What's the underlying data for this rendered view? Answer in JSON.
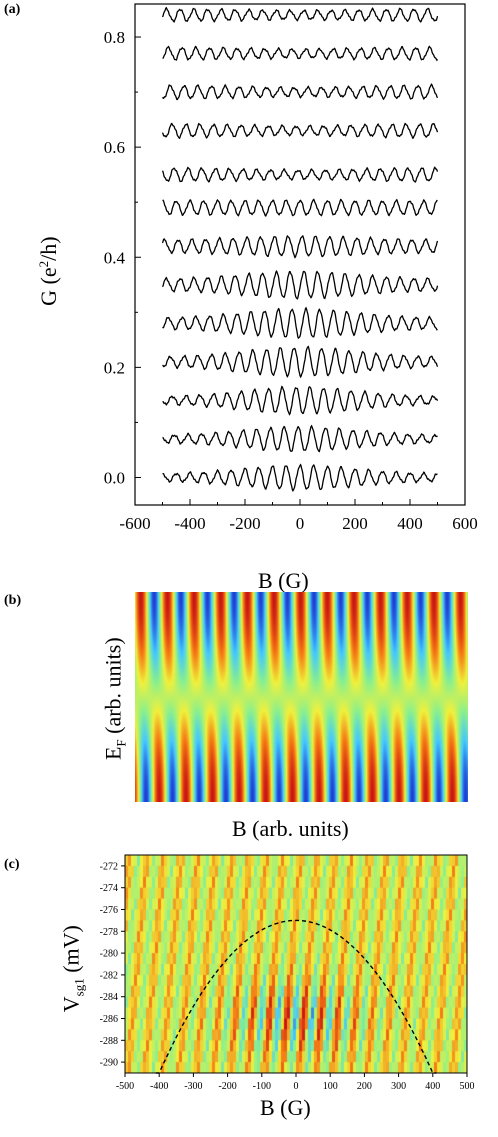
{
  "panels": {
    "a": {
      "label": "(a)"
    },
    "b": {
      "label": "(b)"
    },
    "c": {
      "label": "(c)"
    }
  },
  "chart_data": [
    {
      "type": "line",
      "panel": "(a)",
      "xlabel": "B (G)",
      "ylabel_main": "G (e",
      "ylabel_sup": "2",
      "ylabel_tail": "/h)",
      "xlim": [
        -600,
        600
      ],
      "ylim": [
        -0.05,
        0.86
      ],
      "xticks": [
        -600,
        -400,
        -200,
        0,
        200,
        400,
        600
      ],
      "xtick_labels": [
        "-600",
        "-400",
        "-200",
        "0",
        "200",
        "400",
        "600"
      ],
      "yticks": [
        0.0,
        0.2,
        0.4,
        0.6,
        0.8
      ],
      "ytick_labels": [
        "0.0",
        "0.2",
        "0.4",
        "0.6",
        "0.8"
      ],
      "x_range": [
        -500,
        500
      ],
      "oscillation_period_G": 50,
      "series": [
        {
          "offset": 0.0,
          "center_amp": 0.022,
          "edge_amp": 0.006
        },
        {
          "offset": 0.07,
          "center_amp": 0.022,
          "edge_amp": 0.006
        },
        {
          "offset": 0.14,
          "center_amp": 0.024,
          "edge_amp": 0.006
        },
        {
          "offset": 0.21,
          "center_amp": 0.026,
          "edge_amp": 0.008
        },
        {
          "offset": 0.28,
          "center_amp": 0.026,
          "edge_amp": 0.009
        },
        {
          "offset": 0.35,
          "center_amp": 0.024,
          "edge_amp": 0.01
        },
        {
          "offset": 0.42,
          "center_amp": 0.018,
          "edge_amp": 0.011
        },
        {
          "offset": 0.49,
          "center_amp": 0.013,
          "edge_amp": 0.012
        },
        {
          "offset": 0.55,
          "center_amp": 0.008,
          "edge_amp": 0.012
        },
        {
          "offset": 0.63,
          "center_amp": 0.008,
          "edge_amp": 0.012
        },
        {
          "offset": 0.7,
          "center_amp": 0.008,
          "edge_amp": 0.012
        },
        {
          "offset": 0.77,
          "center_amp": 0.008,
          "edge_amp": 0.011
        },
        {
          "offset": 0.84,
          "center_amp": 0.008,
          "edge_amp": 0.011
        }
      ]
    },
    {
      "type": "heatmap",
      "panel": "(b)",
      "xlabel": "B (arb. units)",
      "ylabel_main": "E",
      "ylabel_sub": "F",
      "ylabel_tail": " (arb. units)",
      "periods": 12.5,
      "colormap": [
        "#1e3cd2",
        "#46c8ff",
        "#8cf08c",
        "#f0f03c",
        "#f57814",
        "#c81414"
      ]
    },
    {
      "type": "heatmap",
      "panel": "(c)",
      "xlabel": "B (G)",
      "ylabel_main": "V",
      "ylabel_sub": "sg1",
      "ylabel_tail": " (mV)",
      "xlim": [
        -500,
        500
      ],
      "ylim": [
        -291,
        -271
      ],
      "xticks": [
        -500,
        -400,
        -300,
        -200,
        -100,
        0,
        100,
        200,
        300,
        400,
        500
      ],
      "xtick_labels": [
        "-500",
        "-400",
        "-300",
        "-200",
        "-100",
        "0",
        "100",
        "200",
        "300",
        "400",
        "500"
      ],
      "yticks": [
        -272,
        -274,
        -276,
        -278,
        -280,
        -282,
        -284,
        -286,
        -288,
        -290
      ],
      "ytick_labels": [
        "-272",
        "-274",
        "-276",
        "-278",
        "-280",
        "-282",
        "-284",
        "-286",
        "-288",
        "-290"
      ],
      "period_G": 50,
      "dashed_parabola": {
        "vertex_B": 0,
        "vertex_V": -277,
        "B_at_V_minus_291": 400
      },
      "colormap": [
        "#1e3cd2",
        "#46c8ff",
        "#8cf08c",
        "#f0f03c",
        "#f57814",
        "#c81414"
      ]
    }
  ]
}
